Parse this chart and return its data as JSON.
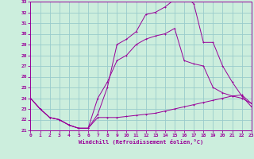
{
  "xlabel": "Windchill (Refroidissement éolien,°C)",
  "bg_color": "#cceedd",
  "line_color": "#990099",
  "grid_color": "#99cccc",
  "x_ticks": [
    0,
    1,
    2,
    3,
    4,
    5,
    6,
    7,
    8,
    9,
    10,
    11,
    12,
    13,
    14,
    15,
    16,
    17,
    18,
    19,
    20,
    21,
    22,
    23
  ],
  "y_ticks": [
    21,
    22,
    23,
    24,
    25,
    26,
    27,
    28,
    29,
    30,
    31,
    32,
    33
  ],
  "xlim": [
    0,
    23
  ],
  "ylim": [
    21,
    33
  ],
  "line1_x": [
    0,
    1,
    2,
    3,
    4,
    5,
    6,
    7,
    8,
    9,
    10,
    11,
    12,
    13,
    14,
    15,
    16,
    17,
    18,
    19,
    20,
    21,
    22,
    23
  ],
  "line1_y": [
    24.0,
    23.0,
    22.2,
    22.0,
    21.5,
    21.2,
    21.2,
    22.2,
    22.2,
    22.2,
    22.3,
    22.4,
    22.5,
    22.6,
    22.8,
    23.0,
    23.2,
    23.4,
    23.6,
    23.8,
    24.0,
    24.2,
    24.3,
    23.5
  ],
  "line2_x": [
    0,
    1,
    2,
    3,
    4,
    5,
    6,
    7,
    8,
    9,
    10,
    11,
    12,
    13,
    14,
    15,
    16,
    17,
    18,
    19,
    20,
    21,
    22,
    23
  ],
  "line2_y": [
    24.0,
    23.0,
    22.2,
    22.0,
    21.5,
    21.2,
    21.2,
    24.0,
    25.5,
    27.5,
    28.0,
    29.0,
    29.5,
    29.8,
    30.0,
    30.5,
    27.5,
    27.2,
    27.0,
    25.0,
    24.5,
    24.2,
    24.0,
    23.5
  ],
  "line3_x": [
    0,
    1,
    2,
    3,
    4,
    5,
    6,
    7,
    8,
    9,
    10,
    11,
    12,
    13,
    14,
    15,
    16,
    17,
    18,
    19,
    20,
    21,
    22,
    23
  ],
  "line3_y": [
    24.0,
    23.0,
    22.2,
    22.0,
    21.5,
    21.2,
    21.2,
    22.5,
    25.0,
    29.0,
    29.5,
    30.2,
    31.8,
    32.0,
    32.5,
    33.2,
    33.5,
    32.8,
    29.2,
    29.2,
    27.0,
    25.5,
    24.2,
    23.2
  ]
}
